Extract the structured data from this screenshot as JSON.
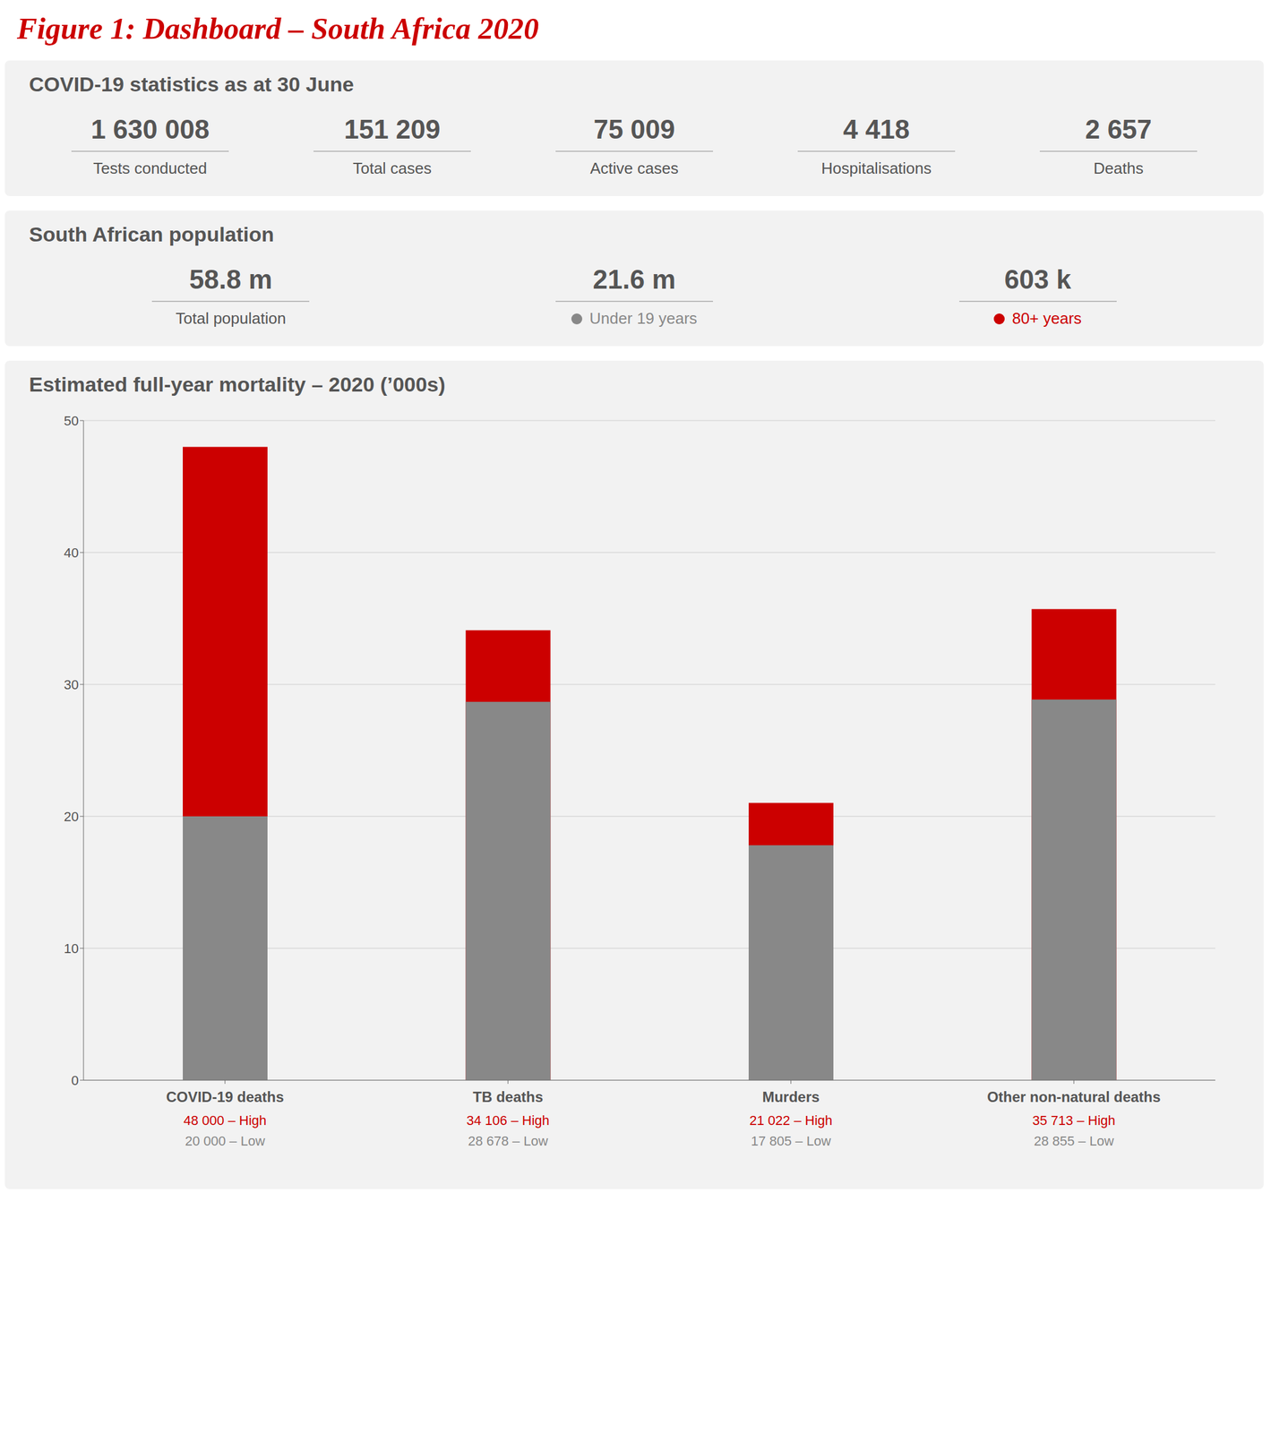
{
  "chart_data": {
    "type": "bar",
    "title": "Figure 1: Dashboard – South Africa 2020",
    "subtitle": "Estimated full-year mortality – 2020 (’000s)",
    "annotations": [
      {
        "title": "COVID-19 statistics as at 30 June",
        "items": [
          {
            "value": "1 630 008",
            "label": "Tests conducted"
          },
          {
            "value": "151 209",
            "label": "Total cases"
          },
          {
            "value": "75 009",
            "label": "Active cases"
          },
          {
            "value": "4 418",
            "label": "Hospitalisations"
          },
          {
            "value": "2 657",
            "label": "Deaths"
          }
        ]
      },
      {
        "title": "South African population",
        "items": [
          {
            "value": "58.8 m",
            "label": "Total population"
          },
          {
            "value": "21.6 m",
            "label": "Under 19 years",
            "color": "#888888"
          },
          {
            "value": "603 k",
            "label": "80+ years",
            "color": "#cc0000"
          }
        ]
      }
    ],
    "categories": [
      "COVID-19 deaths",
      "TB deaths",
      "Murders",
      "Other non-natural deaths"
    ],
    "series": [
      {
        "name": "High",
        "color": "#cc0000",
        "values": [
          48,
          34.106,
          21.022,
          35.713
        ],
        "value_labels": [
          "48 000 – High",
          "34 106 – High",
          "21 022 – High",
          "35 713 – High"
        ]
      },
      {
        "name": "Low",
        "color": "#888888",
        "values": [
          20,
          28.678,
          17.805,
          28.855
        ],
        "value_labels": [
          "20 000 – Low",
          "28 678 – Low",
          "17 805 – Low",
          "28 855 – Low"
        ]
      }
    ],
    "data_labels": true,
    "ylim": [
      0,
      50
    ],
    "yticks": [
      0,
      10,
      20,
      30,
      40,
      50
    ],
    "grid": true
  }
}
